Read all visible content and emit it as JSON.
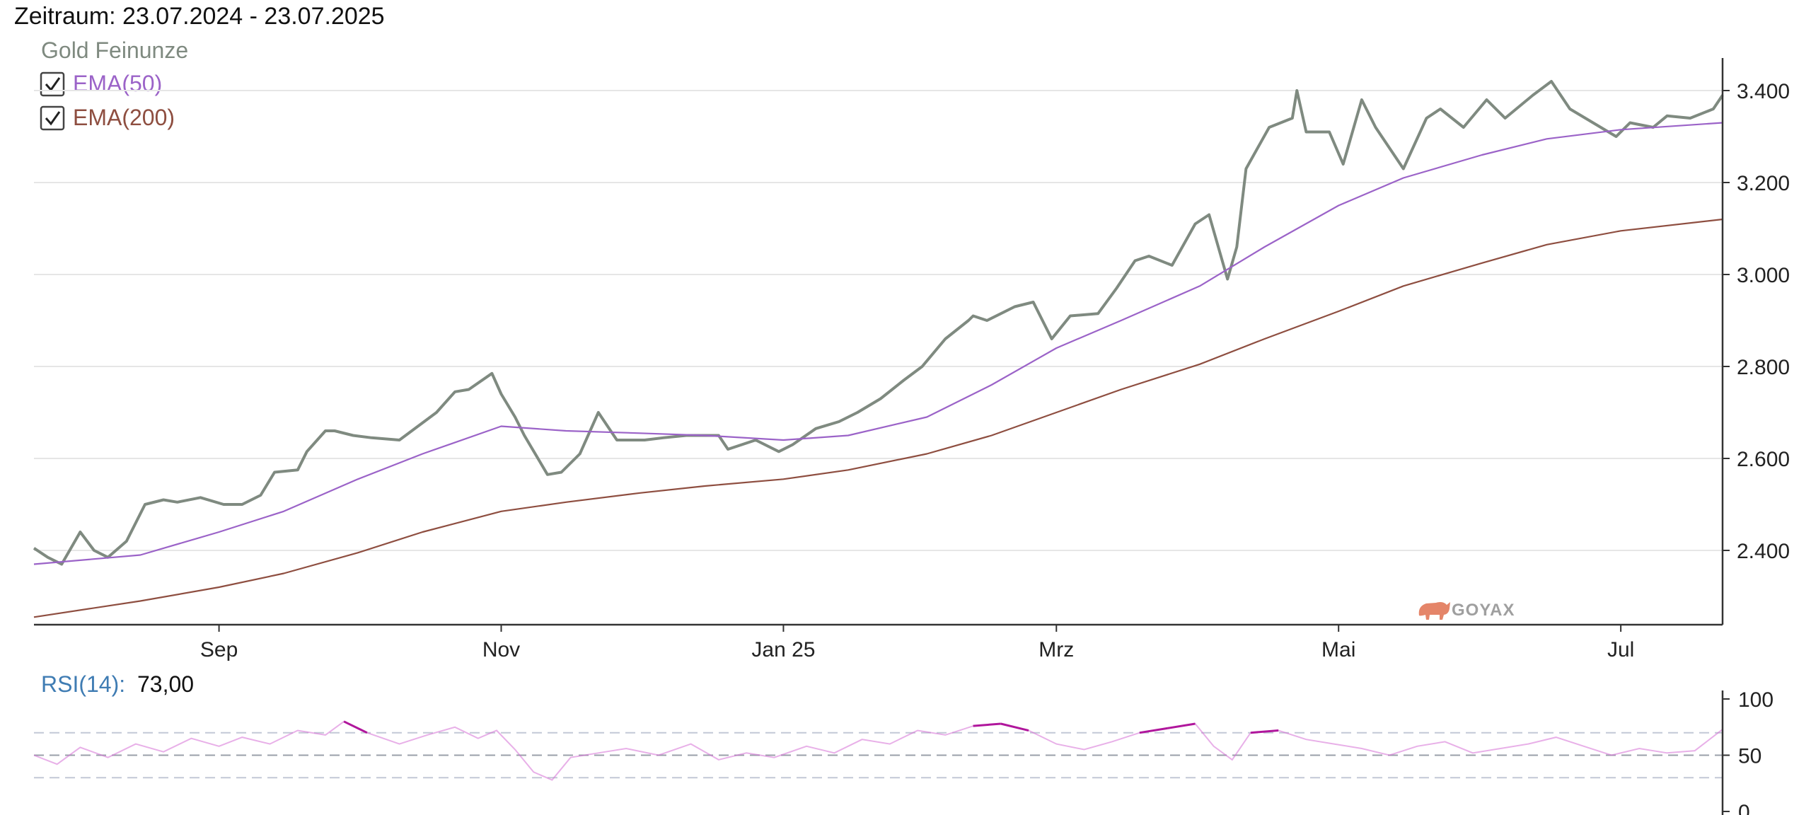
{
  "header": {
    "period": "Zeitraum: 23.07.2024 - 23.07.2025"
  },
  "legend": {
    "gold": {
      "label": "Gold Feinunze",
      "color": "#7f8a80"
    },
    "ema50": {
      "label": "EMA(50)",
      "color": "#9b63c8",
      "checked": true
    },
    "ema200": {
      "label": "EMA(200)",
      "color": "#8e4e40",
      "checked": true
    }
  },
  "brand": {
    "name": "GOYAX",
    "icon": "bull-icon"
  },
  "rsi": {
    "label": "RSI(14):",
    "value": "73,00",
    "color": "#d66fd6",
    "overbought_color": "#b0169c"
  },
  "chart_data": [
    {
      "type": "line",
      "title": "",
      "x_domain": [
        "2024-07-23",
        "2025-07-23"
      ],
      "ylim": [
        2250,
        3470
      ],
      "y_ticks": [
        2400,
        2600,
        2800,
        3000,
        3200,
        3400
      ],
      "y_tick_labels": [
        "2.400",
        "2.600",
        "2.800",
        "3.000",
        "3.200",
        "3.400"
      ],
      "x_ticks": [
        {
          "date": "2024-09-01",
          "label": "Sep"
        },
        {
          "date": "2024-11-01",
          "label": "Nov"
        },
        {
          "date": "2025-01-01",
          "label": "Jan 25"
        },
        {
          "date": "2025-03-01",
          "label": "Mrz"
        },
        {
          "date": "2025-05-01",
          "label": "Mai"
        },
        {
          "date": "2025-07-01",
          "label": "Jul"
        }
      ],
      "grid": true,
      "series": [
        {
          "name": "Gold Feinunze",
          "color": "#7f8a80",
          "x": [
            "2024-07-23",
            "2024-07-26",
            "2024-07-29",
            "2024-08-02",
            "2024-08-05",
            "2024-08-08",
            "2024-08-12",
            "2024-08-14",
            "2024-08-16",
            "2024-08-20",
            "2024-08-23",
            "2024-08-28",
            "2024-09-02",
            "2024-09-06",
            "2024-09-10",
            "2024-09-13",
            "2024-09-18",
            "2024-09-20",
            "2024-09-24",
            "2024-09-26",
            "2024-09-30",
            "2024-10-04",
            "2024-10-10",
            "2024-10-14",
            "2024-10-18",
            "2024-10-22",
            "2024-10-25",
            "2024-10-30",
            "2024-11-01",
            "2024-11-04",
            "2024-11-06",
            "2024-11-11",
            "2024-11-14",
            "2024-11-18",
            "2024-11-22",
            "2024-11-26",
            "2024-12-02",
            "2024-12-06",
            "2024-12-11",
            "2024-12-13",
            "2024-12-18",
            "2024-12-20",
            "2024-12-26",
            "2024-12-31",
            "2025-01-03",
            "2025-01-08",
            "2025-01-13",
            "2025-01-17",
            "2025-01-22",
            "2025-01-27",
            "2025-01-31",
            "2025-02-05",
            "2025-02-10",
            "2025-02-11",
            "2025-02-14",
            "2025-02-20",
            "2025-02-24",
            "2025-02-28",
            "2025-03-04",
            "2025-03-10",
            "2025-03-14",
            "2025-03-18",
            "2025-03-21",
            "2025-03-26",
            "2025-03-31",
            "2025-04-03",
            "2025-04-07",
            "2025-04-09",
            "2025-04-11",
            "2025-04-16",
            "2025-04-21",
            "2025-04-22",
            "2025-04-24",
            "2025-04-29",
            "2025-05-02",
            "2025-05-06",
            "2025-05-09",
            "2025-05-15",
            "2025-05-20",
            "2025-05-23",
            "2025-05-28",
            "2025-06-02",
            "2025-06-06",
            "2025-06-12",
            "2025-06-16",
            "2025-06-20",
            "2025-06-25",
            "2025-06-30",
            "2025-07-03",
            "2025-07-08",
            "2025-07-11",
            "2025-07-16",
            "2025-07-21",
            "2025-07-23"
          ],
          "y": [
            2405,
            2385,
            2370,
            2440,
            2400,
            2385,
            2420,
            2460,
            2500,
            2510,
            2505,
            2515,
            2500,
            2500,
            2520,
            2570,
            2575,
            2615,
            2660,
            2660,
            2650,
            2645,
            2640,
            2670,
            2700,
            2745,
            2750,
            2785,
            2740,
            2690,
            2650,
            2565,
            2570,
            2610,
            2700,
            2640,
            2640,
            2645,
            2650,
            2650,
            2650,
            2620,
            2640,
            2615,
            2630,
            2665,
            2680,
            2700,
            2730,
            2770,
            2800,
            2860,
            2900,
            2910,
            2900,
            2930,
            2940,
            2860,
            2910,
            2915,
            2970,
            3030,
            3040,
            3020,
            3110,
            3130,
            2990,
            3060,
            3230,
            3320,
            3340,
            3400,
            3310,
            3310,
            3240,
            3380,
            3320,
            3230,
            3340,
            3360,
            3320,
            3380,
            3340,
            3390,
            3420,
            3360,
            3330,
            3300,
            3330,
            3320,
            3345,
            3340,
            3360,
            3390
          ]
        },
        {
          "name": "EMA(50)",
          "color": "#9b63c8",
          "x": [
            "2024-07-23",
            "2024-08-15",
            "2024-09-01",
            "2024-09-15",
            "2024-10-01",
            "2024-10-15",
            "2024-11-01",
            "2024-11-15",
            "2024-12-01",
            "2024-12-15",
            "2025-01-01",
            "2025-01-15",
            "2025-02-01",
            "2025-02-15",
            "2025-03-01",
            "2025-03-15",
            "2025-04-01",
            "2025-04-15",
            "2025-05-01",
            "2025-05-15",
            "2025-06-01",
            "2025-06-15",
            "2025-07-01",
            "2025-07-23"
          ],
          "y": [
            2370,
            2390,
            2440,
            2485,
            2555,
            2610,
            2670,
            2660,
            2655,
            2650,
            2640,
            2650,
            2690,
            2760,
            2840,
            2900,
            2975,
            3060,
            3150,
            3210,
            3260,
            3295,
            3315,
            3330
          ]
        },
        {
          "name": "EMA(200)",
          "color": "#8e4e40",
          "x": [
            "2024-07-23",
            "2024-08-15",
            "2024-09-01",
            "2024-09-15",
            "2024-10-01",
            "2024-10-15",
            "2024-11-01",
            "2024-11-15",
            "2024-12-01",
            "2024-12-15",
            "2025-01-01",
            "2025-01-15",
            "2025-02-01",
            "2025-02-15",
            "2025-03-01",
            "2025-03-15",
            "2025-04-01",
            "2025-04-15",
            "2025-05-01",
            "2025-05-15",
            "2025-06-01",
            "2025-06-15",
            "2025-07-01",
            "2025-07-23"
          ],
          "y": [
            2255,
            2290,
            2320,
            2350,
            2395,
            2440,
            2485,
            2505,
            2525,
            2540,
            2555,
            2575,
            2610,
            2650,
            2700,
            2750,
            2805,
            2860,
            2920,
            2975,
            3025,
            3065,
            3095,
            3120
          ]
        }
      ]
    },
    {
      "type": "line",
      "title": "",
      "x_domain": [
        "2024-07-23",
        "2025-07-23"
      ],
      "ylim": [
        0,
        100
      ],
      "y_ticks": [
        0,
        50,
        100
      ],
      "y_tick_labels": [
        "0",
        "50",
        "100"
      ],
      "reference_lines": [
        30,
        50,
        70
      ],
      "series": [
        {
          "name": "RSI(14)",
          "color": "#d66fd6",
          "x": [
            "2024-07-23",
            "2024-07-28",
            "2024-08-02",
            "2024-08-08",
            "2024-08-14",
            "2024-08-20",
            "2024-08-26",
            "2024-09-01",
            "2024-09-06",
            "2024-09-12",
            "2024-09-18",
            "2024-09-24",
            "2024-09-28",
            "2024-10-03",
            "2024-10-10",
            "2024-10-16",
            "2024-10-22",
            "2024-10-27",
            "2024-10-31",
            "2024-11-04",
            "2024-11-08",
            "2024-11-12",
            "2024-11-16",
            "2024-11-22",
            "2024-11-28",
            "2024-12-05",
            "2024-12-12",
            "2024-12-18",
            "2024-12-24",
            "2024-12-30",
            "2025-01-06",
            "2025-01-12",
            "2025-01-18",
            "2025-01-24",
            "2025-01-30",
            "2025-02-05",
            "2025-02-11",
            "2025-02-17",
            "2025-02-23",
            "2025-03-01",
            "2025-03-07",
            "2025-03-13",
            "2025-03-19",
            "2025-03-25",
            "2025-03-31",
            "2025-04-04",
            "2025-04-08",
            "2025-04-12",
            "2025-04-18",
            "2025-04-24",
            "2025-04-30",
            "2025-05-06",
            "2025-05-12",
            "2025-05-18",
            "2025-05-24",
            "2025-05-30",
            "2025-06-05",
            "2025-06-11",
            "2025-06-17",
            "2025-06-23",
            "2025-06-29",
            "2025-07-05",
            "2025-07-11",
            "2025-07-17",
            "2025-07-23"
          ],
          "y": [
            50,
            42,
            57,
            48,
            60,
            53,
            65,
            58,
            66,
            60,
            72,
            68,
            80,
            70,
            60,
            68,
            75,
            65,
            72,
            55,
            35,
            28,
            48,
            52,
            56,
            50,
            60,
            46,
            52,
            48,
            58,
            52,
            64,
            60,
            72,
            68,
            76,
            78,
            72,
            60,
            55,
            62,
            70,
            74,
            78,
            58,
            46,
            70,
            72,
            64,
            60,
            56,
            50,
            58,
            62,
            52,
            56,
            60,
            66,
            58,
            50,
            56,
            52,
            54,
            73
          ]
        }
      ]
    }
  ]
}
